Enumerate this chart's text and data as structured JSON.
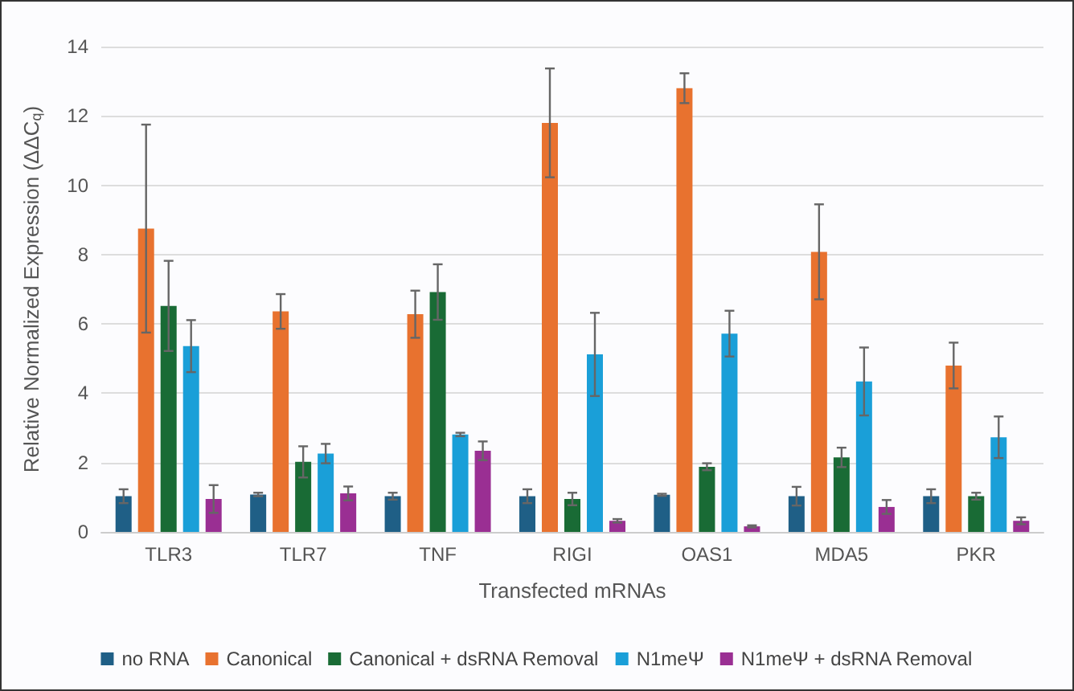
{
  "chart_data": {
    "type": "bar",
    "xlabel": "Transfected mRNAs",
    "ylabel": "Relative Normalized Expression (ΔΔC$_{q}$)",
    "categories": [
      "TLR3",
      "TLR7",
      "TNF",
      "RIGI",
      "OAS1",
      "MDA5",
      "PKR"
    ],
    "series": [
      {
        "name": "no RNA",
        "color": "#1f5f86",
        "values": [
          1.03,
          1.08,
          1.03,
          1.03,
          1.07,
          1.03,
          1.03
        ],
        "errors": [
          0.2,
          0.05,
          0.1,
          0.2,
          0.03,
          0.27,
          0.2
        ]
      },
      {
        "name": "Canonical",
        "color": "#e8722f",
        "values": [
          8.75,
          6.36,
          6.28,
          11.8,
          12.8,
          8.08,
          4.8
        ],
        "errors": [
          3,
          0.5,
          0.68,
          1.57,
          0.43,
          1.37,
          0.66
        ]
      },
      {
        "name": "Canonical + dsRNA Removal",
        "color": "#196b35",
        "values": [
          6.52,
          2.02,
          6.92,
          0.95,
          1.88,
          2.15,
          1.03
        ],
        "errors": [
          1.3,
          0.45,
          0.8,
          0.18,
          0.1,
          0.28,
          0.1
        ]
      },
      {
        "name": "N1meΨ",
        "color": "#1a9fd8",
        "values": [
          5.36,
          2.26,
          2.81,
          5.12,
          5.72,
          4.34,
          2.73
        ],
        "errors": [
          0.75,
          0.28,
          0.05,
          1.2,
          0.66,
          0.98,
          0.6
        ]
      },
      {
        "name": "N1meΨ + dsRNA Removal",
        "color": "#9a2f93",
        "values": [
          0.95,
          1.11,
          2.34,
          0.32,
          0.16,
          0.72,
          0.32
        ],
        "errors": [
          0.4,
          0.2,
          0.27,
          0.05,
          0.03,
          0.2,
          0.1
        ]
      }
    ],
    "ylim": [
      0,
      14
    ],
    "yticks": [
      0,
      2,
      4,
      6,
      8,
      10,
      12,
      14
    ],
    "grid": "y",
    "legend": "bottom"
  }
}
